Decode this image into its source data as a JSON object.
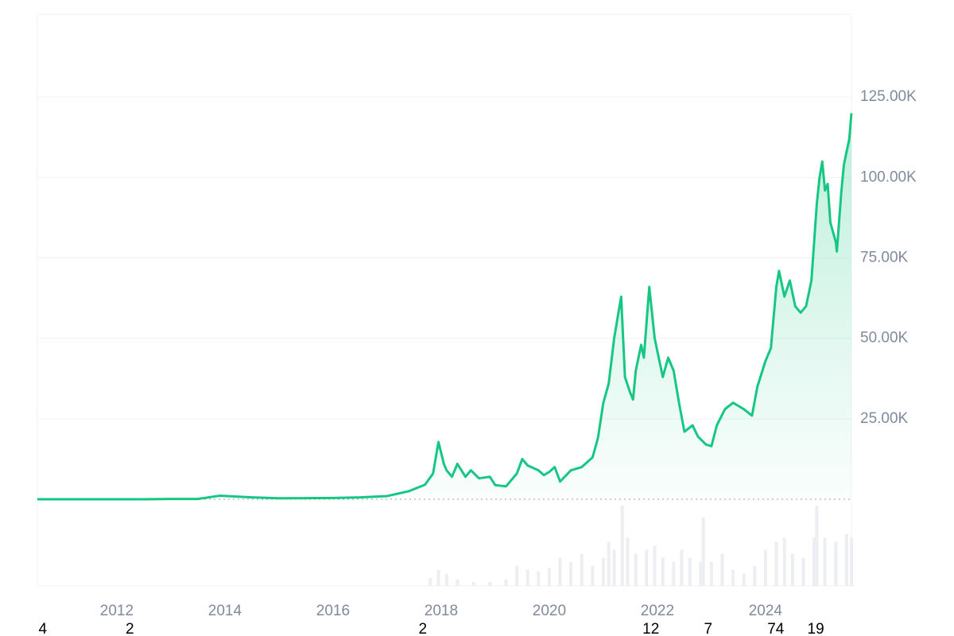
{
  "chart_data": {
    "type": "line",
    "x": [
      2010.53,
      2011.5,
      2012.5,
      2013.0,
      2013.5,
      2013.9,
      2014.5,
      2015.0,
      2016.0,
      2016.5,
      2017.0,
      2017.4,
      2017.7,
      2017.85,
      2017.95,
      2018.05,
      2018.1,
      2018.2,
      2018.3,
      2018.45,
      2018.55,
      2018.7,
      2018.9,
      2019.0,
      2019.2,
      2019.4,
      2019.5,
      2019.6,
      2019.8,
      2019.9,
      2020.0,
      2020.1,
      2020.2,
      2020.4,
      2020.6,
      2020.8,
      2020.9,
      2021.0,
      2021.1,
      2021.2,
      2021.28,
      2021.33,
      2021.4,
      2021.5,
      2021.55,
      2021.6,
      2021.7,
      2021.75,
      2021.85,
      2021.95,
      2022.0,
      2022.1,
      2022.2,
      2022.3,
      2022.4,
      2022.5,
      2022.65,
      2022.75,
      2022.9,
      2023.0,
      2023.1,
      2023.25,
      2023.4,
      2023.5,
      2023.6,
      2023.75,
      2023.85,
      2024.0,
      2024.1,
      2024.2,
      2024.25,
      2024.35,
      2024.45,
      2024.55,
      2024.65,
      2024.75,
      2024.85,
      2024.95,
      2025.0,
      2025.05,
      2025.1,
      2025.15,
      2025.2,
      2025.3,
      2025.32,
      2025.4,
      2025.45,
      2025.5,
      2025.55,
      2025.59
    ],
    "series": [
      {
        "color": "#16c784",
        "values": [
          0,
          10,
          10,
          100,
          100,
          1100,
          600,
          300,
          400,
          600,
          1000,
          2500,
          4500,
          8000,
          17800,
          11000,
          9000,
          7000,
          11000,
          7000,
          9000,
          6500,
          7000,
          4400,
          4000,
          8000,
          12500,
          10500,
          9000,
          7500,
          8500,
          10000,
          5500,
          9000,
          10000,
          13000,
          19000,
          30000,
          36000,
          50000,
          58000,
          63000,
          38000,
          33000,
          31000,
          40000,
          48000,
          44000,
          66000,
          50000,
          46000,
          38000,
          44000,
          40000,
          30000,
          21000,
          23000,
          19500,
          17000,
          16500,
          23000,
          28000,
          30000,
          29000,
          28000,
          26000,
          35000,
          43000,
          47000,
          66000,
          71000,
          63000,
          68000,
          60000,
          58000,
          60000,
          68000,
          92000,
          100000,
          105000,
          96000,
          98000,
          86000,
          80000,
          77000,
          95000,
          104000,
          108000,
          112000,
          120000
        ]
      }
    ],
    "volume": {
      "color": "#eceef2",
      "ylim": [
        0,
        100
      ],
      "x": [
        2017.8,
        2017.95,
        2018.1,
        2018.3,
        2018.6,
        2018.9,
        2019.2,
        2019.4,
        2019.6,
        2019.8,
        2020.0,
        2020.2,
        2020.4,
        2020.6,
        2020.8,
        2021.0,
        2021.1,
        2021.2,
        2021.35,
        2021.45,
        2021.6,
        2021.8,
        2021.95,
        2022.1,
        2022.3,
        2022.45,
        2022.6,
        2022.8,
        2022.85,
        2023.0,
        2023.2,
        2023.4,
        2023.6,
        2023.8,
        2024.0,
        2024.2,
        2024.35,
        2024.5,
        2024.7,
        2024.9,
        2024.95,
        2025.1,
        2025.3,
        2025.5,
        2025.59
      ],
      "values": [
        10,
        20,
        15,
        8,
        5,
        5,
        8,
        25,
        20,
        18,
        22,
        35,
        30,
        40,
        25,
        35,
        55,
        45,
        100,
        60,
        40,
        45,
        50,
        35,
        30,
        45,
        35,
        30,
        85,
        30,
        40,
        20,
        15,
        25,
        45,
        55,
        60,
        40,
        35,
        60,
        100,
        60,
        55,
        65,
        60
      ]
    },
    "xlim": [
      2010.53,
      2025.59
    ],
    "xticks": [
      2012,
      2014,
      2016,
      2018,
      2020,
      2022,
      2024
    ],
    "ylim": [
      0,
      150000
    ],
    "yticks": [
      {
        "value": 25000,
        "label": "25.00K"
      },
      {
        "value": 50000,
        "label": "50.00K"
      },
      {
        "value": 75000,
        "label": "75.00K"
      },
      {
        "value": 100000,
        "label": "100.00K"
      },
      {
        "value": 125000,
        "label": "125.00K"
      }
    ],
    "grid": true,
    "markers": [
      {
        "x": 2010.63,
        "label": "4"
      },
      {
        "x": 2012.24,
        "label": "2"
      },
      {
        "x": 2017.66,
        "label": "2"
      },
      {
        "x": 2021.88,
        "label": "12"
      },
      {
        "x": 2022.94,
        "label": "7"
      },
      {
        "x": 2024.19,
        "label": "74"
      },
      {
        "x": 2024.93,
        "label": "19"
      }
    ]
  }
}
